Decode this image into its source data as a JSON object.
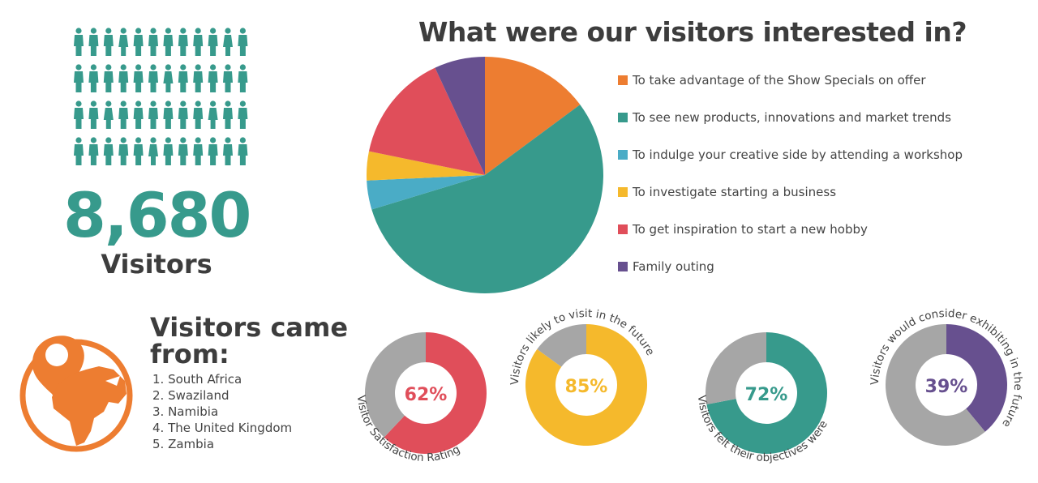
{
  "visitors": {
    "count": "8,680",
    "label": "Visitors"
  },
  "main_title": "What were our visitors interested in?",
  "origin": {
    "title_line1": "Visitors came",
    "title_line2": "from:",
    "countries": [
      "1. South Africa",
      "2. Swaziland",
      "3. Namibia",
      "4. The United Kingdom",
      "5. Zambia"
    ]
  },
  "colors": {
    "orange": "#ed7d31",
    "teal": "#379a8c",
    "blue": "#4aacc6",
    "yellow": "#f5b92c",
    "red": "#e04e5a",
    "purple": "#67508f",
    "gray": "#a6a6a6",
    "text": "#3a3a3a"
  },
  "chart_data": [
    {
      "type": "pie",
      "title": "What were our visitors interested in?",
      "legend_position": "right",
      "categories": [
        "To take advantage of the Show Specials on offer",
        "To see new products, innovations and market trends",
        "To indulge your creative side by attending a workshop",
        "To investigate starting a business",
        "To get inspiration to start a new hobby",
        "Family outing"
      ],
      "values": [
        15,
        56,
        4,
        4,
        15,
        7
      ],
      "colors": [
        "#ed7d31",
        "#379a8c",
        "#4aacc6",
        "#f5b92c",
        "#e04e5a",
        "#67508f"
      ]
    },
    {
      "type": "pie",
      "label": "Visitor Satisfaction Rating",
      "value_label": "62%",
      "values": [
        62,
        38
      ],
      "colors": [
        "#e04e5a",
        "#a6a6a6"
      ]
    },
    {
      "type": "pie",
      "label": "Visitors likely to visit in the future",
      "value_label": "85%",
      "values": [
        85,
        15
      ],
      "colors": [
        "#f5b92c",
        "#a6a6a6"
      ]
    },
    {
      "type": "pie",
      "label": "Visitors felt their objectives were met",
      "value_label": "72%",
      "values": [
        72,
        28
      ],
      "colors": [
        "#379a8c",
        "#a6a6a6"
      ]
    },
    {
      "type": "pie",
      "label": "Visitors would consider exhibiting in the future",
      "value_label": "39%",
      "values": [
        39,
        61
      ],
      "colors": [
        "#67508f",
        "#a6a6a6"
      ]
    }
  ]
}
